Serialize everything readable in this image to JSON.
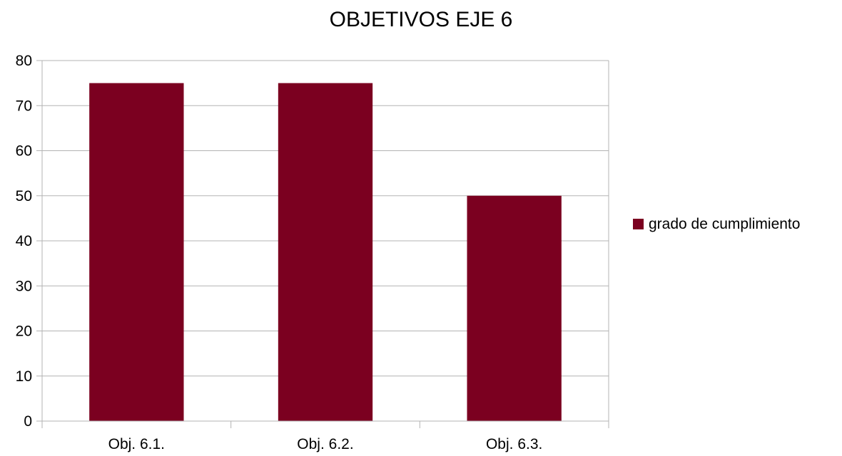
{
  "chart_data": {
    "type": "bar",
    "title": "OBJETIVOS EJE 6",
    "xlabel": "",
    "ylabel": "",
    "categories": [
      "Obj. 6.1.",
      "Obj. 6.2.",
      "Obj. 6.3."
    ],
    "series": [
      {
        "name": "grado de cumplimiento",
        "values": [
          75,
          75,
          50
        ],
        "color": "#7b0020"
      }
    ],
    "ylim": [
      0,
      80
    ],
    "yticks": [
      "0",
      "10",
      "20",
      "30",
      "40",
      "50",
      "60",
      "70",
      "80"
    ],
    "grid": true,
    "legend_position": "right"
  }
}
